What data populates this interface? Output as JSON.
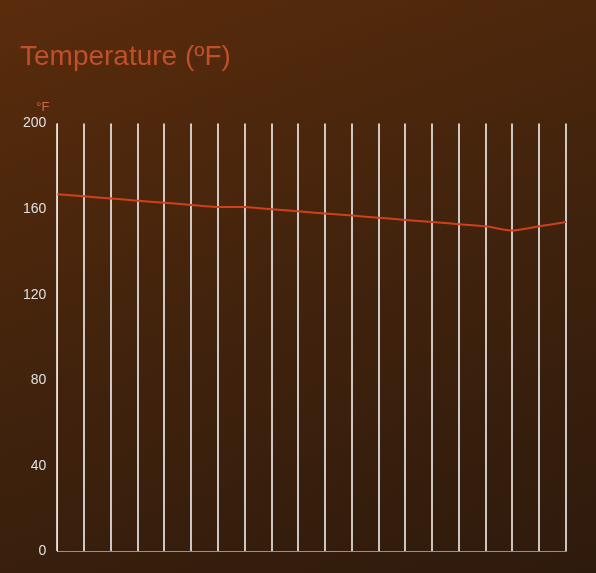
{
  "chart_data": {
    "type": "line",
    "title": "Temperature (ºF)",
    "ylabel": "°F",
    "categories": [
      null,
      null,
      null,
      null,
      null,
      null,
      null,
      null,
      null,
      null,
      null,
      null,
      null,
      null,
      null,
      null,
      null,
      null,
      null,
      null
    ],
    "values": [
      167,
      166,
      165,
      164,
      163,
      162,
      161,
      161,
      160,
      159,
      158,
      157,
      156,
      155,
      154,
      153,
      152,
      150,
      152,
      154
    ],
    "color": "#d0401c",
    "ylim": [
      0,
      200
    ],
    "yticks": [
      0,
      40,
      80,
      120,
      160,
      200
    ],
    "grid": true,
    "tick_labels": "y"
  }
}
